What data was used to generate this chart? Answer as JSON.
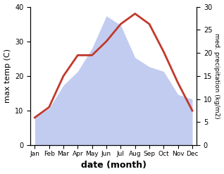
{
  "months": [
    "Jan",
    "Feb",
    "Mar",
    "Apr",
    "May",
    "Jun",
    "Jul",
    "Aug",
    "Sep",
    "Oct",
    "Nov",
    "Dec"
  ],
  "temp": [
    8,
    11,
    20,
    26,
    26,
    30,
    35,
    38,
    35,
    27,
    18,
    10
  ],
  "precip": [
    6,
    8,
    13,
    16,
    21,
    28,
    26,
    19,
    17,
    16,
    11,
    10
  ],
  "temp_color": "#c0392b",
  "precip_fill_color": "#b8c4ee",
  "ylabel_left": "max temp (C)",
  "ylabel_right": "med. precipitation (kg/m2)",
  "xlabel": "date (month)",
  "ylim_left": [
    0,
    40
  ],
  "ylim_right": [
    0,
    30
  ],
  "yticks_left": [
    0,
    10,
    20,
    30,
    40
  ],
  "yticks_right": [
    0,
    5,
    10,
    15,
    20,
    25,
    30
  ],
  "background_color": "#ffffff"
}
